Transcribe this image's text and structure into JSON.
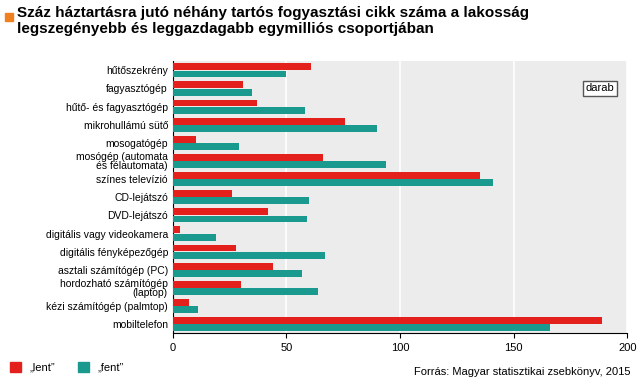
{
  "chart_data": {
    "type": "bar",
    "orientation": "horizontal",
    "title": "Száz háztartásra jutó néhány tartós fogyasztási cikk száma a lakosság legszegényebb és leggazdagabb egymilliós csoportjában",
    "categories": [
      "hűtőszekrény",
      "fagyasztógép",
      "hűtő- és fagyasztógép",
      "mikrohullámú sütő",
      "mosogatógép",
      "mosógép (automata\nés félautomata)",
      "színes televízió",
      "CD-lejátszó",
      "DVD-lejátszó",
      "digitális vagy videokamera",
      "digitális fényképezőgép",
      "asztali számítógép (PC)",
      "hordozható számítógép\n(laptop)",
      "kézi számítógép (palmtop)",
      "mobiltelefon"
    ],
    "series": [
      {
        "name": "„lent”",
        "color": "#e3201b",
        "values": [
          61,
          31,
          37,
          76,
          10,
          66,
          135,
          26,
          42,
          3,
          28,
          44,
          30,
          7,
          189
        ]
      },
      {
        "name": "„fent”",
        "color": "#1a9a8e",
        "values": [
          50,
          35,
          58,
          90,
          29,
          94,
          141,
          60,
          59,
          19,
          67,
          57,
          64,
          11,
          166
        ]
      }
    ],
    "xlim": [
      0,
      200
    ],
    "xticks": [
      0,
      50,
      100,
      150,
      200
    ],
    "grid": true,
    "legend": "lower left",
    "annotations": [
      "darab",
      "Forrás: Magyar statisztikai zsebkönyv, 2015"
    ]
  }
}
